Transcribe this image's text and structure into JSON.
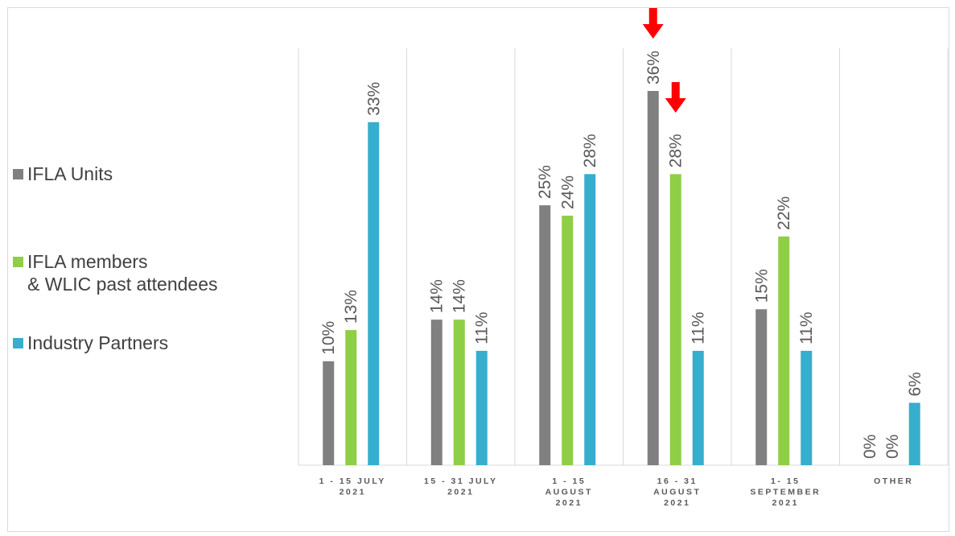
{
  "chart_data": {
    "type": "bar",
    "title": "",
    "xlabel": "",
    "ylabel": "",
    "categories": [
      [
        "1 - 15 JULY",
        "2021"
      ],
      [
        "15 - 31 JULY",
        "2021"
      ],
      [
        "1 - 15",
        "AUGUST",
        "2021"
      ],
      [
        "16 - 31",
        "AUGUST",
        "2021"
      ],
      [
        "1- 15",
        "SEPTEMBER",
        "2021"
      ],
      [
        "OTHER"
      ]
    ],
    "series": [
      {
        "name": "IFLA Units",
        "color": "#808080",
        "values": [
          10,
          14,
          25,
          36,
          15,
          0
        ]
      },
      {
        "name": "IFLA members\n& WLIC past attendees",
        "color": "#8fce47",
        "values": [
          13,
          14,
          24,
          28,
          22,
          0
        ]
      },
      {
        "name": "Industry Partners",
        "color": "#37aecd",
        "values": [
          33,
          11,
          28,
          11,
          11,
          6
        ]
      }
    ],
    "value_suffix": "%",
    "ylim": [
      0,
      36
    ],
    "grid": "vertical category separators",
    "legend_position": "left",
    "annotations": [
      {
        "type": "arrow-down",
        "color": "#ff0000",
        "category_index": 3,
        "series_index": 0
      },
      {
        "type": "arrow-down",
        "color": "#ff0000",
        "category_index": 3,
        "series_index": 1
      }
    ]
  }
}
